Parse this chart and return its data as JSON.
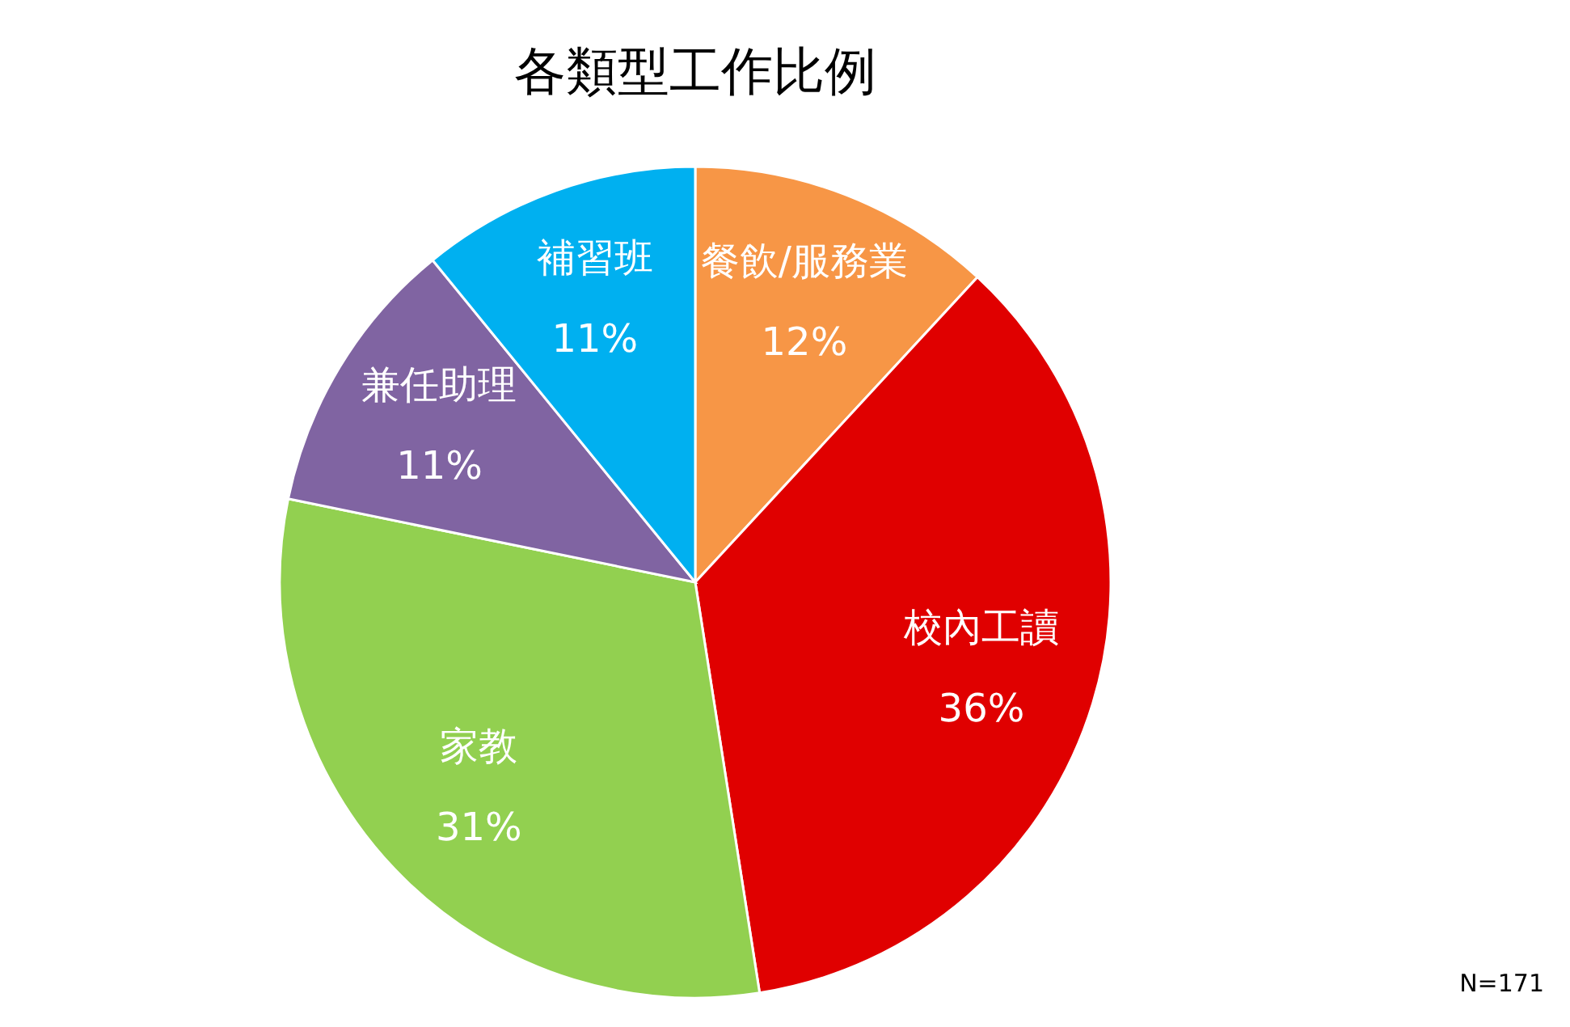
{
  "chart_data": {
    "type": "pie",
    "title": "各類型工作比例",
    "categories": [
      "餐飲/服務業",
      "校內工讀",
      "家教",
      "兼任助理",
      "補習班"
    ],
    "values": [
      12,
      36,
      31,
      11,
      11
    ],
    "value_labels": [
      "12%",
      "36%",
      "31%",
      "11%",
      "11%"
    ],
    "colors": [
      "#f79646",
      "#e00000",
      "#92d050",
      "#8064a2",
      "#00b0f0"
    ],
    "annotations": [
      "N=171"
    ]
  }
}
